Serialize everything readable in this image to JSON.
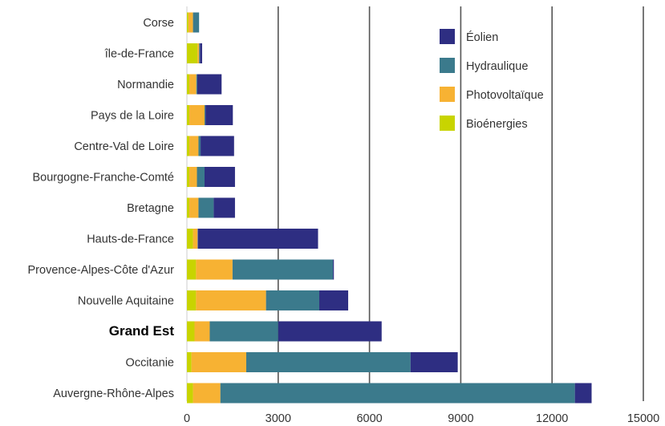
{
  "chart_data": {
    "type": "bar",
    "orientation": "horizontal",
    "stacked": true,
    "title": "",
    "xlabel": "",
    "ylabel": "",
    "xlim": [
      0,
      15000
    ],
    "xticks": [
      0,
      3000,
      6000,
      9000,
      12000,
      15000
    ],
    "grid": "vertical",
    "legend_position": "top-right",
    "highlighted_category": "Grand Est",
    "categories": [
      "Corse",
      "île-de-France",
      "Normandie",
      "Pays de la Loire",
      "Centre-Val de Loire",
      "Bourgogne-Franche-Comté",
      "Bretagne",
      "Hauts-de-France",
      "Provence-Alpes-Côte d'Azur",
      "Nouvelle Aquitaine",
      "Grand Est",
      "Occitanie",
      "Auvergne-Rhône-Alpes"
    ],
    "series": [
      {
        "name": "Bioénergies",
        "color": "#c8d400",
        "values": [
          50,
          350,
          80,
          80,
          80,
          80,
          80,
          200,
          300,
          300,
          250,
          150,
          200
        ]
      },
      {
        "name": "Photovoltaïque",
        "color": "#f7b233",
        "values": [
          150,
          50,
          230,
          500,
          300,
          250,
          300,
          150,
          1200,
          2300,
          500,
          1800,
          900
        ]
      },
      {
        "name": "Hydraulique",
        "color": "#3b7a8c",
        "values": [
          200,
          30,
          30,
          30,
          70,
          250,
          500,
          10,
          3300,
          1750,
          2250,
          5400,
          11650
        ]
      },
      {
        "name": "Éolien",
        "color": "#2e2e82",
        "values": [
          0,
          70,
          800,
          900,
          1100,
          1000,
          700,
          3950,
          30,
          950,
          3400,
          1550,
          550
        ]
      }
    ],
    "legend_order": [
      "Éolien",
      "Hydraulique",
      "Photovoltaïque",
      "Bioénergies"
    ]
  }
}
